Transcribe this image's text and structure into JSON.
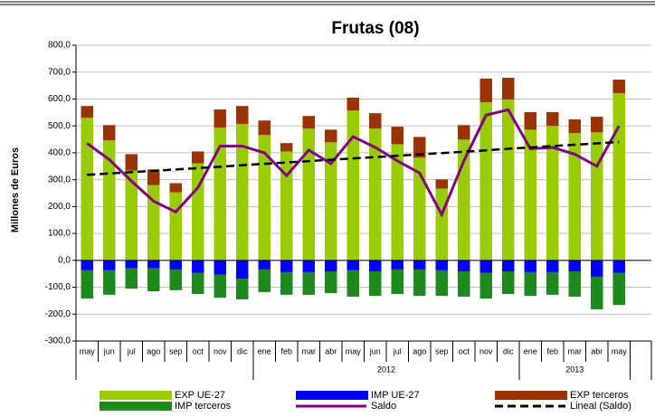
{
  "chart_data": {
    "type": "bar",
    "title": "Frutas (08)",
    "y_label": "Millones de Euros",
    "categories": [
      "may",
      "jun",
      "jul",
      "ago",
      "sep",
      "oct",
      "nov",
      "dic",
      "ene",
      "feb",
      "mar",
      "abr",
      "may",
      "jun",
      "jul",
      "ago",
      "sep",
      "oct",
      "nov",
      "dic",
      "ene",
      "feb",
      "mar",
      "abr",
      "may"
    ],
    "year_labels": [
      "2012",
      "2013"
    ],
    "ylim": [
      -300,
      800
    ],
    "yticks": [
      {
        "value": -300,
        "label": "-300,0"
      },
      {
        "value": -200,
        "label": "-200,0"
      },
      {
        "value": -100,
        "label": "-100,0"
      },
      {
        "value": 0,
        "label": "0,0"
      },
      {
        "value": 100,
        "label": "100,0"
      },
      {
        "value": 200,
        "label": "200,0"
      },
      {
        "value": 300,
        "label": "300,0"
      },
      {
        "value": 400,
        "label": "400,0"
      },
      {
        "value": 500,
        "label": "500,0"
      },
      {
        "value": 600,
        "label": "600,0"
      },
      {
        "value": 700,
        "label": "700,0"
      },
      {
        "value": 800,
        "label": "800,0"
      }
    ],
    "grid": true,
    "series": [
      {
        "name": "EXP UE-27",
        "type": "bar",
        "color": "#99cc00",
        "values": [
          530,
          446,
          334,
          280,
          253,
          361,
          493,
          507,
          466,
          405,
          490,
          439,
          557,
          490,
          432,
          382,
          267,
          449,
          588,
          598,
          486,
          500,
          473,
          476,
          622
        ]
      },
      {
        "name": "IMP UE-27",
        "type": "bar",
        "color": "#0000ff",
        "values": [
          -37,
          -37,
          -30,
          -30,
          -34,
          -47,
          -54,
          -68,
          -34,
          -44,
          -44,
          -41,
          -37,
          -41,
          -34,
          -34,
          -37,
          -41,
          -47,
          -41,
          -44,
          -44,
          -41,
          -61,
          -47
        ]
      },
      {
        "name": "EXP terceros",
        "type": "bar",
        "color": "#993300",
        "values": [
          44,
          57,
          61,
          58,
          34,
          44,
          68,
          67,
          54,
          31,
          47,
          47,
          48,
          57,
          65,
          77,
          34,
          54,
          88,
          81,
          65,
          51,
          51,
          58,
          50
        ]
      },
      {
        "name": "IMP terceros",
        "type": "bar",
        "color": "#1e8a1e",
        "values": [
          -105,
          -91,
          -75,
          -85,
          -77,
          -78,
          -85,
          -77,
          -84,
          -84,
          -84,
          -81,
          -98,
          -91,
          -91,
          -98,
          -95,
          -94,
          -95,
          -84,
          -88,
          -84,
          -94,
          -121,
          -119
        ]
      },
      {
        "name": "Saldo",
        "type": "line",
        "color": "#800080",
        "values": [
          435,
          375,
          295,
          220,
          180,
          270,
          425,
          425,
          400,
          315,
          410,
          360,
          460,
          420,
          370,
          325,
          170,
          370,
          540,
          560,
          415,
          420,
          395,
          350,
          500
        ]
      },
      {
        "name": "Lineal (Saldo)",
        "type": "line",
        "color": "#000000",
        "dashed": true,
        "values": [
          318,
          323,
          328,
          333,
          338,
          343,
          348,
          354,
          359,
          364,
          369,
          374,
          379,
          384,
          389,
          394,
          399,
          404,
          409,
          415,
          420,
          425,
          430,
          435,
          440
        ]
      }
    ]
  }
}
